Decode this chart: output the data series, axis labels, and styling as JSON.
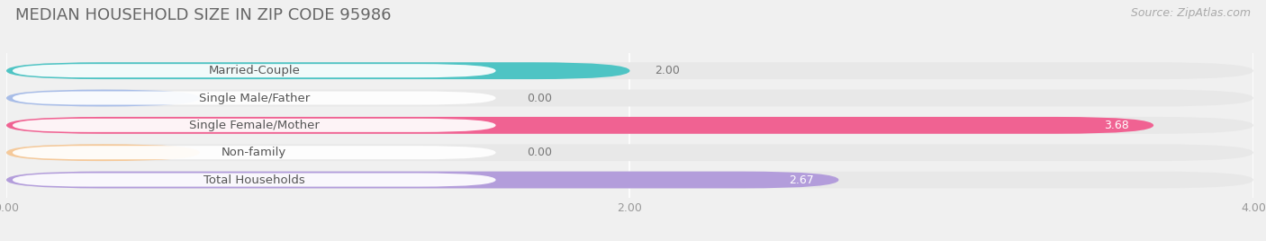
{
  "title": "MEDIAN HOUSEHOLD SIZE IN ZIP CODE 95986",
  "source": "Source: ZipAtlas.com",
  "categories": [
    "Married-Couple",
    "Single Male/Father",
    "Single Female/Mother",
    "Non-family",
    "Total Households"
  ],
  "values": [
    2.0,
    0.0,
    3.68,
    0.0,
    2.67
  ],
  "bar_colors": [
    "#4ec4c4",
    "#a8bde8",
    "#f06292",
    "#f5c99a",
    "#b39ddb"
  ],
  "xlim": [
    0,
    4.0
  ],
  "xticks": [
    0.0,
    2.0,
    4.0
  ],
  "xtick_labels": [
    "0.00",
    "2.00",
    "4.00"
  ],
  "background_color": "#f0f0f0",
  "bar_bg_color": "#e8e8e8",
  "title_fontsize": 13,
  "source_fontsize": 9,
  "label_fontsize": 9.5,
  "value_fontsize": 9,
  "bar_height": 0.62,
  "value_colors": [
    "#888888",
    "#888888",
    "#ffffff",
    "#888888",
    "#ffffff"
  ]
}
